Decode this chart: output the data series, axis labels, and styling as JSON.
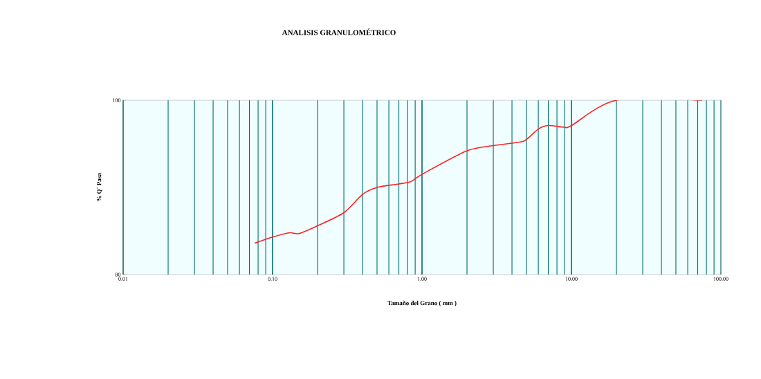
{
  "chart_data": {
    "type": "line",
    "title": "ANALISIS GRANULOMÉTRICO",
    "xlabel": "Tamaño del Grano ( mm )",
    "ylabel": "% Q´ Pasa",
    "log": "x",
    "grid": "x",
    "marker": "none",
    "line_style": "solid",
    "xlim": [
      0.01,
      100
    ],
    "ylim": [
      80,
      100
    ],
    "xticks": [
      {
        "value": 0.01,
        "label": "0.01"
      },
      {
        "value": 0.1,
        "label": "0.10"
      },
      {
        "value": 1,
        "label": "1.00"
      },
      {
        "value": 10,
        "label": "10.00"
      },
      {
        "value": 100,
        "label": "100.00"
      }
    ],
    "yticks": [
      80,
      100
    ],
    "series": [
      {
        "color": "#ff2020",
        "x": [
          0.076,
          0.1,
          0.13,
          0.15,
          0.2,
          0.3,
          0.4,
          0.5,
          0.7,
          0.85,
          1.0,
          2.0,
          3.0,
          4.5,
          5.0,
          6.0,
          7.0,
          9.0,
          10.0,
          20.0,
          75.0
        ],
        "values": [
          83.6,
          84.3,
          84.8,
          84.7,
          85.6,
          87.1,
          89.2,
          90.0,
          90.4,
          90.7,
          91.5,
          94.2,
          94.8,
          95.2,
          95.5,
          96.7,
          97.1,
          96.9,
          97.1,
          100,
          100
        ]
      }
    ]
  }
}
